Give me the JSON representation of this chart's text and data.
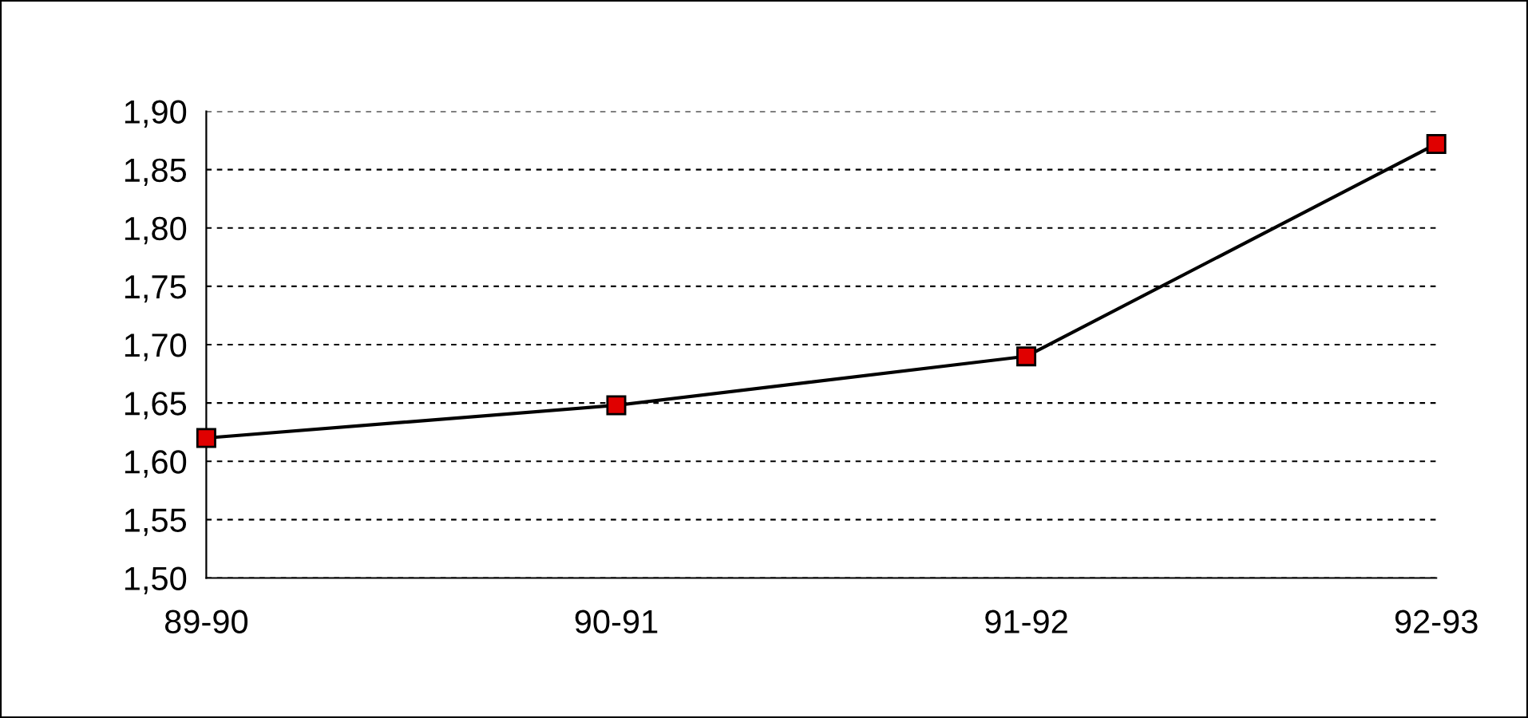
{
  "chart_data": {
    "type": "line",
    "categories": [
      "89-90",
      "90-91",
      "91-92",
      "92-93"
    ],
    "series": [
      {
        "color": "#e00000",
        "values": [
          1.62,
          1.648,
          1.69,
          1.872
        ]
      }
    ],
    "ylim": [
      1.5,
      1.9
    ],
    "yticks": [
      {
        "value": 1.5,
        "label": "1,50"
      },
      {
        "value": 1.55,
        "label": "1,55"
      },
      {
        "value": 1.6,
        "label": "1,60"
      },
      {
        "value": 1.65,
        "label": "1,65"
      },
      {
        "value": 1.7,
        "label": "1,70"
      },
      {
        "value": 1.75,
        "label": "1,75"
      },
      {
        "value": 1.8,
        "label": "1,80"
      },
      {
        "value": 1.85,
        "label": "1,85"
      },
      {
        "value": 1.9,
        "label": "1,90"
      }
    ],
    "grid": "y",
    "marker": "square",
    "line_style": "solid",
    "legend": false
  }
}
